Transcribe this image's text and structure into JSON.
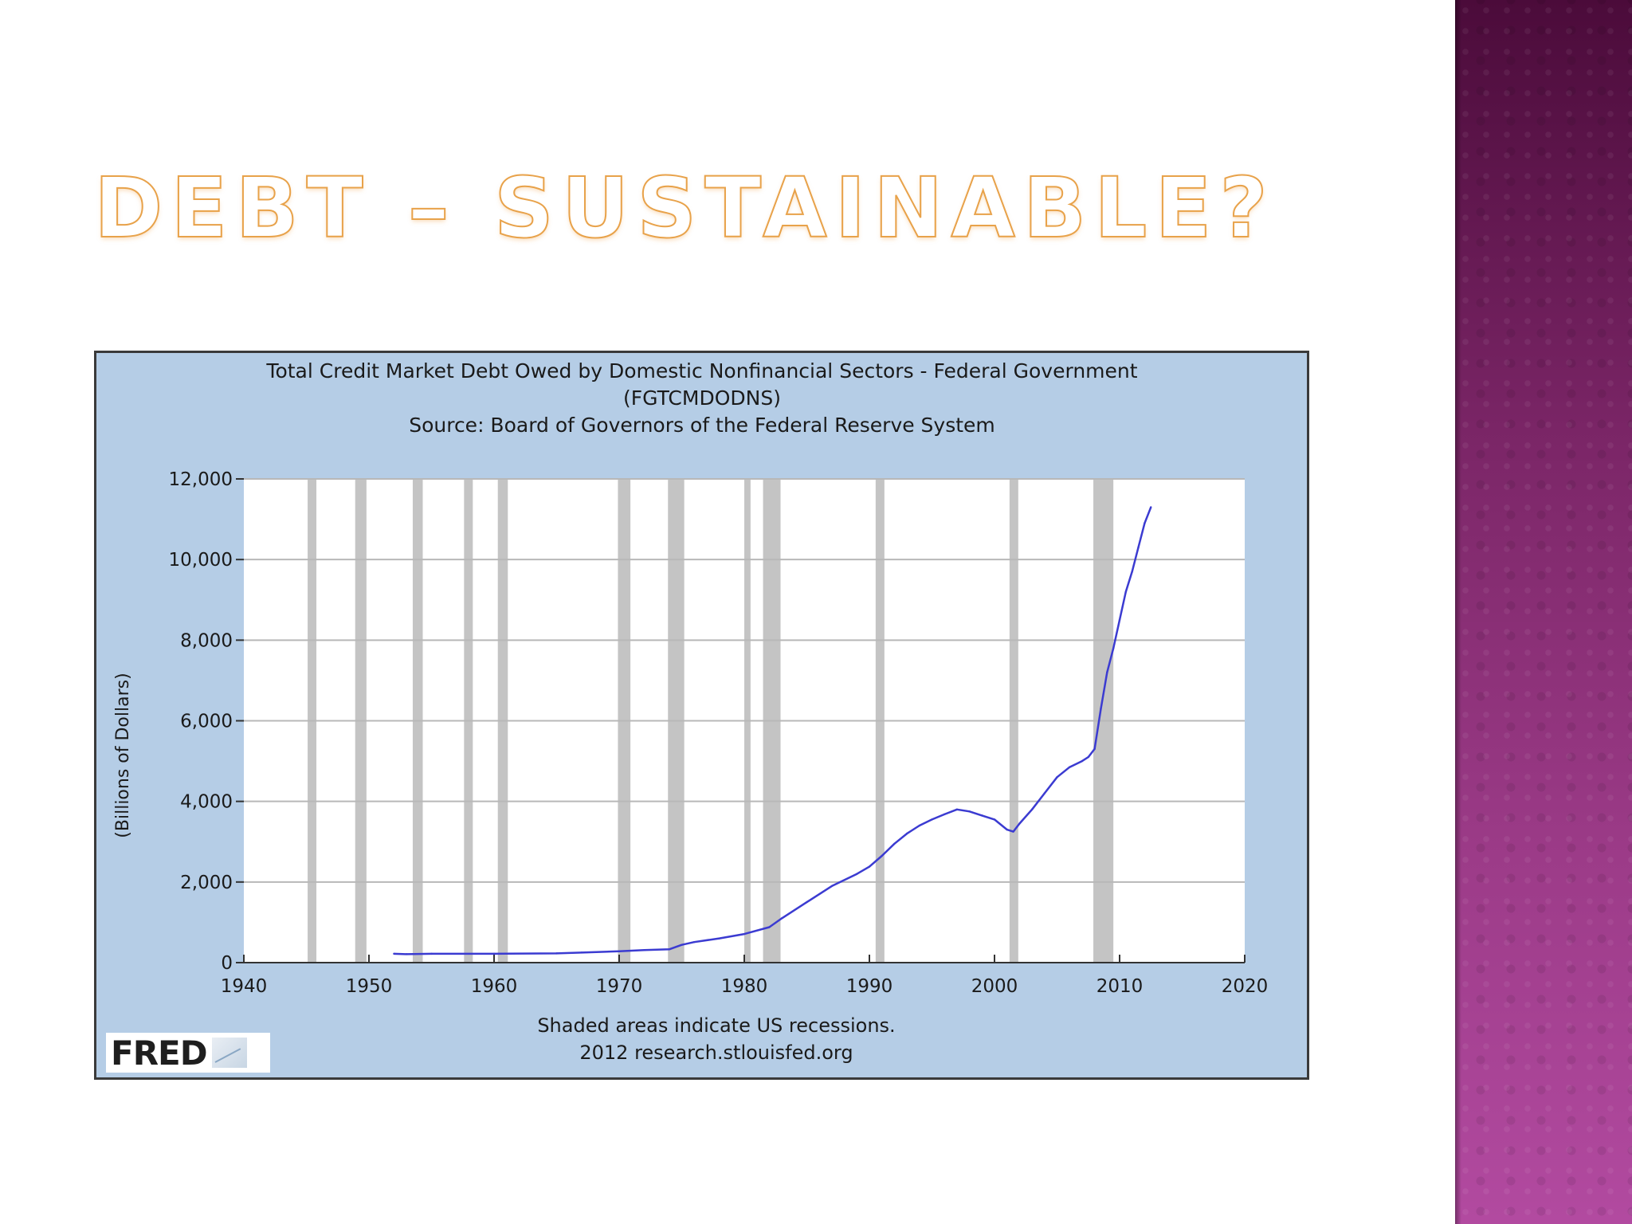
{
  "slide": {
    "title": "DEBT – SUSTAINABLE?",
    "title_color": "#e8a24a",
    "side_band_color": "#7a2566"
  },
  "footer": {
    "recession_note": "Shaded areas indicate US recessions.",
    "credit": "2012 research.stlouisfed.org"
  },
  "logo": {
    "text": "FRED"
  },
  "chart_data": {
    "type": "line",
    "title": "Total Credit Market Debt Owed by Domestic Nonfinancial Sectors - Federal Government",
    "subtitle": "(FGTCMDODNS)",
    "source": "Source: Board of Governors of the Federal Reserve System",
    "xlabel": "",
    "ylabel": "(Billions of Dollars)",
    "xlim": [
      1940,
      2020
    ],
    "ylim": [
      0,
      12000
    ],
    "x_ticks": [
      1940,
      1950,
      1960,
      1970,
      1980,
      1990,
      2000,
      2010,
      2020
    ],
    "y_ticks": [
      0,
      2000,
      4000,
      6000,
      8000,
      10000,
      12000
    ],
    "y_tick_labels": [
      "0",
      "2,000",
      "4,000",
      "6,000",
      "8,000",
      "10,000",
      "12,000"
    ],
    "grid": true,
    "plot_background": "#ffffff",
    "frame_background": "#b5cde6",
    "line_color": "#3b3bd1",
    "recession_color": "#c4c4c4",
    "recessions": [
      [
        1945.1,
        1945.8
      ],
      [
        1948.9,
        1949.8
      ],
      [
        1953.5,
        1954.3
      ],
      [
        1957.6,
        1958.3
      ],
      [
        1960.3,
        1961.1
      ],
      [
        1969.9,
        1970.9
      ],
      [
        1973.9,
        1975.2
      ],
      [
        1980.0,
        1980.5
      ],
      [
        1981.5,
        1982.9
      ],
      [
        1990.5,
        1991.2
      ],
      [
        2001.2,
        2001.9
      ],
      [
        2007.9,
        2009.5
      ]
    ],
    "series": [
      {
        "x": [
          1952.0,
          1953.0,
          1955.0,
          1960.0,
          1965.0,
          1967.0,
          1970.0,
          1972.0,
          1974.0,
          1975.0,
          1976.0,
          1978.0,
          1980.0,
          1982.0,
          1983.0,
          1985.0,
          1987.0,
          1989.0,
          1990.0,
          1991.0,
          1992.0,
          1993.0,
          1994.0,
          1995.0,
          1996.0,
          1997.0,
          1998.0,
          1999.0,
          2000.0,
          2001.0,
          2001.5,
          2002.0,
          2003.0,
          2004.0,
          2005.0,
          2006.0,
          2007.0,
          2007.5,
          2008.0,
          2008.5,
          2009.0,
          2009.5,
          2010.0,
          2010.5,
          2011.0,
          2011.5,
          2012.0,
          2012.5
        ],
        "values": [
          220,
          210,
          220,
          220,
          230,
          250,
          280,
          310,
          330,
          440,
          510,
          600,
          710,
          880,
          1100,
          1500,
          1900,
          2200,
          2380,
          2650,
          2950,
          3200,
          3400,
          3550,
          3680,
          3800,
          3750,
          3650,
          3550,
          3300,
          3250,
          3450,
          3800,
          4200,
          4600,
          4850,
          5000,
          5100,
          5300,
          6300,
          7200,
          7800,
          8500,
          9200,
          9700,
          10300,
          10900,
          11300
        ]
      }
    ]
  }
}
